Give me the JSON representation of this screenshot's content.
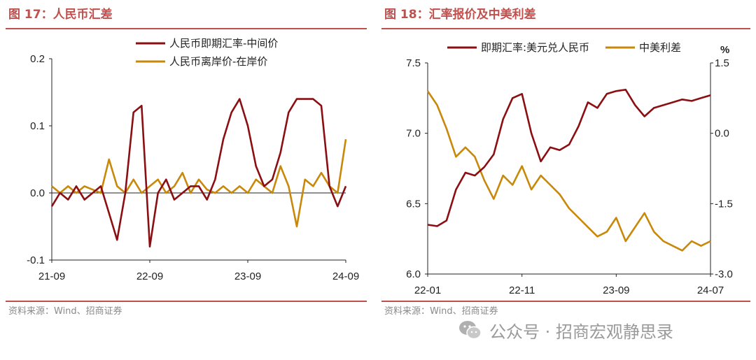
{
  "left": {
    "title": "图 17：人民币汇差",
    "source": "资料来源：Wind、招商证券",
    "chart_data": {
      "type": "line",
      "x_ticks": [
        "21-09",
        "22-09",
        "23-09",
        "24-09"
      ],
      "ylim": [
        -0.1,
        0.2
      ],
      "y_ticks": [
        "-0.1",
        "0.0",
        "0.1",
        "0.2"
      ],
      "legend_position": "top-center",
      "series": [
        {
          "name": "人民币即期汇率-中间价",
          "color": "#8b0f12",
          "x": [
            "2021-09",
            "2021-10",
            "2021-11",
            "2021-12",
            "2022-01",
            "2022-02",
            "2022-03",
            "2022-04",
            "2022-05",
            "2022-06",
            "2022-07",
            "2022-08",
            "2022-09",
            "2022-10",
            "2022-11",
            "2022-12",
            "2023-01",
            "2023-02",
            "2023-03",
            "2023-04",
            "2023-05",
            "2023-06",
            "2023-07",
            "2023-08",
            "2023-09",
            "2023-10",
            "2023-11",
            "2023-12",
            "2024-01",
            "2024-02",
            "2024-03",
            "2024-04",
            "2024-05",
            "2024-06",
            "2024-07",
            "2024-08",
            "2024-09"
          ],
          "values": [
            -0.02,
            0.0,
            -0.01,
            0.01,
            -0.01,
            0.0,
            0.01,
            -0.03,
            -0.07,
            0.0,
            0.12,
            0.13,
            -0.08,
            0.0,
            0.02,
            -0.01,
            0.0,
            0.01,
            0.01,
            -0.01,
            0.02,
            0.08,
            0.12,
            0.14,
            0.1,
            0.04,
            0.01,
            0.02,
            0.06,
            0.12,
            0.14,
            0.14,
            0.14,
            0.13,
            0.01,
            -0.02,
            0.01
          ]
        },
        {
          "name": "人民币离岸价-在岸价",
          "color": "#c8880a",
          "x": [
            "2021-09",
            "2021-10",
            "2021-11",
            "2021-12",
            "2022-01",
            "2022-02",
            "2022-03",
            "2022-04",
            "2022-05",
            "2022-06",
            "2022-07",
            "2022-08",
            "2022-09",
            "2022-10",
            "2022-11",
            "2022-12",
            "2023-01",
            "2023-02",
            "2023-03",
            "2023-04",
            "2023-05",
            "2023-06",
            "2023-07",
            "2023-08",
            "2023-09",
            "2023-10",
            "2023-11",
            "2023-12",
            "2024-01",
            "2024-02",
            "2024-03",
            "2024-04",
            "2024-05",
            "2024-06",
            "2024-07",
            "2024-08",
            "2024-09"
          ],
          "values": [
            0.01,
            0.0,
            0.01,
            0.0,
            0.01,
            0.005,
            0.0,
            0.05,
            0.01,
            0.0,
            0.02,
            0.0,
            0.01,
            0.02,
            0.0,
            0.01,
            0.03,
            0.0,
            0.02,
            0.005,
            0.0,
            0.01,
            0.0,
            0.01,
            0.0,
            0.02,
            0.01,
            0.0,
            0.04,
            0.01,
            -0.05,
            0.02,
            0.01,
            0.03,
            0.01,
            0.0,
            0.08
          ]
        }
      ]
    }
  },
  "right": {
    "title": "图 18：汇率报价及中美利差",
    "source": "资料来源：Wind、招商证券",
    "y2_unit": "%",
    "chart_data": {
      "type": "line",
      "x_ticks": [
        "22-01",
        "22-11",
        "23-09",
        "24-07"
      ],
      "ylim": [
        6.0,
        7.5
      ],
      "y_ticks": [
        "6.0",
        "6.5",
        "7.0",
        "7.5"
      ],
      "y2lim": [
        -3.0,
        1.5
      ],
      "y2_ticks": [
        "-3.0",
        "-1.5",
        "0.0",
        "1.5"
      ],
      "legend_position": "top",
      "series": [
        {
          "name": "即期汇率:美元兑人民币",
          "axis": "left",
          "color": "#8b0f12",
          "x": [
            "2022-01",
            "2022-02",
            "2022-03",
            "2022-04",
            "2022-05",
            "2022-06",
            "2022-07",
            "2022-08",
            "2022-09",
            "2022-10",
            "2022-11",
            "2022-12",
            "2023-01",
            "2023-02",
            "2023-03",
            "2023-04",
            "2023-05",
            "2023-06",
            "2023-07",
            "2023-08",
            "2023-09",
            "2023-10",
            "2023-11",
            "2023-12",
            "2024-01",
            "2024-02",
            "2024-03",
            "2024-04",
            "2024-05",
            "2024-06",
            "2024-07"
          ],
          "values": [
            6.35,
            6.34,
            6.38,
            6.6,
            6.72,
            6.7,
            6.76,
            6.85,
            7.1,
            7.25,
            7.28,
            7.0,
            6.8,
            6.9,
            6.88,
            6.92,
            7.05,
            7.22,
            7.18,
            7.28,
            7.3,
            7.31,
            7.2,
            7.12,
            7.18,
            7.2,
            7.22,
            7.24,
            7.23,
            7.25,
            7.27
          ]
        },
        {
          "name": "中美利差",
          "axis": "right",
          "color": "#c8880a",
          "x": [
            "2022-01",
            "2022-02",
            "2022-03",
            "2022-04",
            "2022-05",
            "2022-06",
            "2022-07",
            "2022-08",
            "2022-09",
            "2022-10",
            "2022-11",
            "2022-12",
            "2023-01",
            "2023-02",
            "2023-03",
            "2023-04",
            "2023-05",
            "2023-06",
            "2023-07",
            "2023-08",
            "2023-09",
            "2023-10",
            "2023-11",
            "2023-12",
            "2024-01",
            "2024-02",
            "2024-03",
            "2024-04",
            "2024-05",
            "2024-06",
            "2024-07"
          ],
          "values": [
            0.9,
            0.6,
            0.1,
            -0.5,
            -0.3,
            -0.5,
            -1.0,
            -1.4,
            -0.9,
            -1.1,
            -0.7,
            -1.2,
            -0.9,
            -1.1,
            -1.3,
            -1.6,
            -1.8,
            -2.0,
            -2.2,
            -2.1,
            -1.8,
            -2.3,
            -2.0,
            -1.7,
            -2.1,
            -2.3,
            -2.4,
            -2.5,
            -2.3,
            -2.4,
            -2.3
          ]
        }
      ]
    }
  },
  "watermark": "公众号 · 招商宏观静思录"
}
